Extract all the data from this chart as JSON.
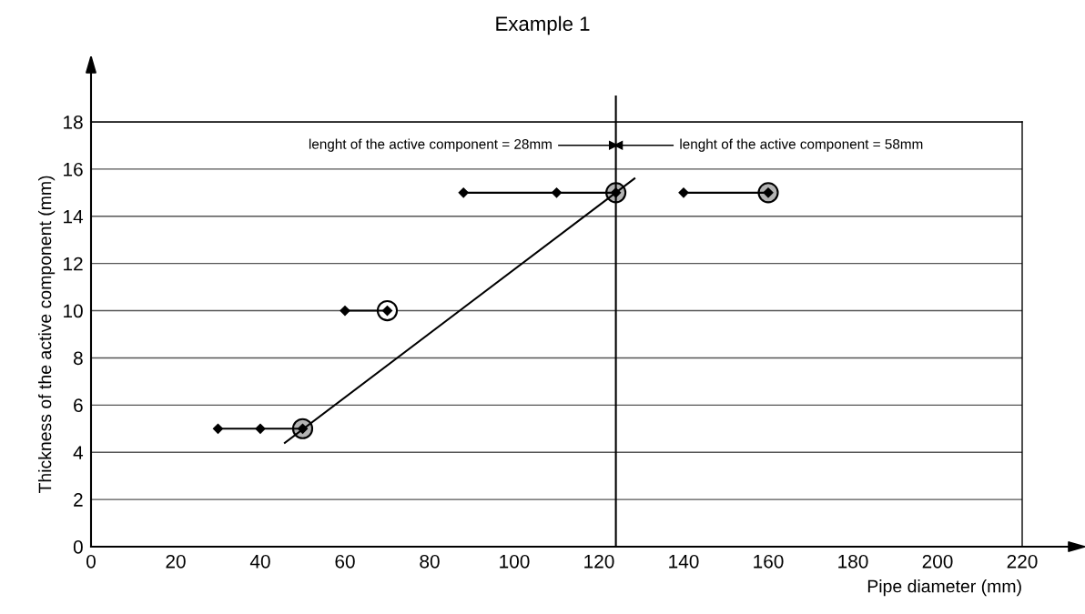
{
  "chart_data": {
    "type": "line",
    "title": "Example 1",
    "xlabel": "Pipe diameter (mm)",
    "ylabel": "Thickness of the active component (mm)",
    "xlim": [
      0,
      220
    ],
    "xticks": [
      0,
      20,
      40,
      60,
      80,
      100,
      120,
      140,
      160,
      180,
      200,
      220
    ],
    "ylim": [
      0,
      18
    ],
    "yticks": [
      0,
      2,
      4,
      6,
      8,
      10,
      12,
      14,
      16,
      18
    ],
    "grid": "y",
    "legend": false,
    "series": [
      {
        "marker": "diamond",
        "color": "#000000",
        "x": [
          30,
          40,
          50
        ],
        "values": [
          5,
          5,
          5
        ]
      },
      {
        "marker": "diamond",
        "color": "#000000",
        "x": [
          60,
          70
        ],
        "values": [
          10,
          10
        ]
      },
      {
        "marker": "diamond",
        "color": "#000000",
        "x": [
          88,
          110,
          124
        ],
        "values": [
          15,
          15,
          15
        ]
      },
      {
        "marker": "diamond",
        "color": "#000000",
        "x": [
          140,
          160
        ],
        "values": [
          15,
          15
        ]
      },
      {
        "type": "scatter",
        "marker": "circle",
        "colors": [
          "#b3b3b3",
          "#ffffff",
          "#b3b3b3",
          "#b3b3b3"
        ],
        "x": [
          50,
          70,
          124,
          160
        ],
        "values": [
          5,
          10,
          15,
          15
        ]
      },
      {
        "marker": "none",
        "color": "#000000",
        "x": [
          45.8,
          128.4
        ],
        "values": [
          4.4,
          15.6
        ]
      }
    ],
    "ref_lines": [
      {
        "axis": "x",
        "value": 124,
        "color": "#000000"
      }
    ],
    "annotations": [
      "lenght of the active component = 28mm",
      "lenght of the active component = 58mm"
    ]
  }
}
